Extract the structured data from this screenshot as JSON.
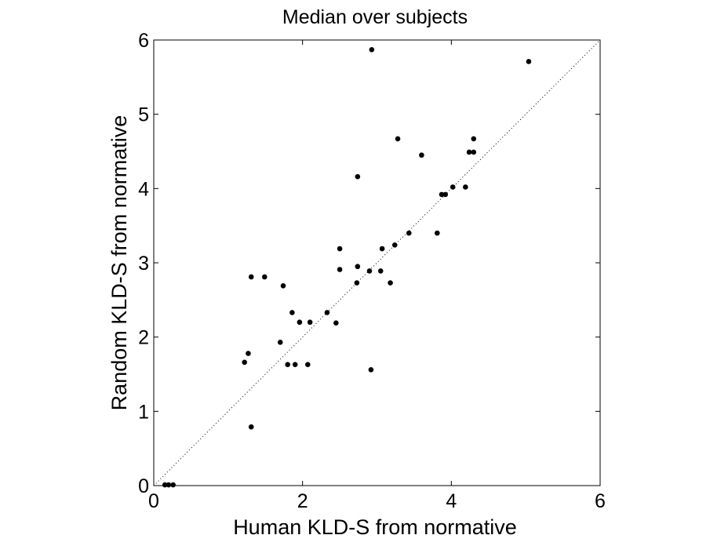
{
  "chart_data": {
    "type": "scatter",
    "title": "Median over subjects",
    "xlabel": "Human KLD-S from normative",
    "ylabel": "Random KLD-S from normative",
    "xlim": [
      0,
      6
    ],
    "ylim": [
      0,
      6
    ],
    "xticks": [
      "0",
      "2",
      "4",
      "6"
    ],
    "yticks": [
      "0",
      "1",
      "2",
      "3",
      "4",
      "5",
      "6"
    ],
    "grid": false,
    "diagonal_reference_line": true,
    "marker_color": "#000000",
    "points": [
      [
        0.15,
        0.01
      ],
      [
        0.2,
        0.01
      ],
      [
        0.26,
        0.01
      ],
      [
        1.22,
        1.66
      ],
      [
        1.27,
        1.78
      ],
      [
        1.31,
        0.79
      ],
      [
        1.31,
        2.81
      ],
      [
        1.49,
        2.81
      ],
      [
        1.7,
        1.93
      ],
      [
        1.74,
        2.69
      ],
      [
        1.8,
        1.63
      ],
      [
        1.86,
        2.33
      ],
      [
        1.9,
        1.63
      ],
      [
        1.96,
        2.2
      ],
      [
        2.07,
        1.63
      ],
      [
        2.1,
        2.2
      ],
      [
        2.33,
        2.33
      ],
      [
        2.45,
        2.19
      ],
      [
        2.5,
        3.19
      ],
      [
        2.5,
        2.91
      ],
      [
        2.73,
        2.73
      ],
      [
        2.74,
        2.95
      ],
      [
        2.74,
        4.16
      ],
      [
        2.9,
        2.89
      ],
      [
        2.92,
        1.56
      ],
      [
        2.93,
        5.87
      ],
      [
        3.05,
        2.89
      ],
      [
        3.07,
        3.19
      ],
      [
        3.18,
        2.73
      ],
      [
        3.24,
        3.24
      ],
      [
        3.28,
        4.67
      ],
      [
        3.43,
        3.4
      ],
      [
        3.6,
        4.45
      ],
      [
        3.81,
        3.4
      ],
      [
        3.87,
        3.92
      ],
      [
        3.92,
        3.92
      ],
      [
        4.02,
        4.02
      ],
      [
        4.19,
        4.02
      ],
      [
        4.24,
        4.49
      ],
      [
        4.3,
        4.49
      ],
      [
        4.3,
        4.67
      ],
      [
        5.04,
        5.71
      ]
    ]
  }
}
